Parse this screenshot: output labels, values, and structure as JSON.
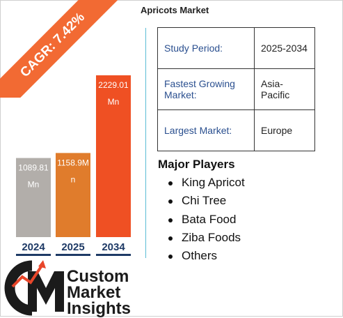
{
  "title": "Apricots Market",
  "cagr": "CAGR: 7.42%",
  "colors": {
    "accent": "#f26a33",
    "bar_2024": "#b2aeaa",
    "bar_2025": "#e07c2c",
    "bar_2034": "#ef5023",
    "year_text": "#1e3a66",
    "divider": "#5bbcd6"
  },
  "chart_data": {
    "type": "bar",
    "categories": [
      "2024",
      "2025",
      "2034"
    ],
    "values": [
      1089.81,
      1158.9,
      2229.01
    ],
    "value_labels": [
      [
        "1089.81",
        "Mn"
      ],
      [
        "1158.9M",
        "n"
      ],
      [
        "2229.01",
        "Mn"
      ]
    ],
    "title": "",
    "xlabel": "",
    "ylabel": "",
    "unit": "Mn"
  },
  "info": [
    {
      "label": "Study Period:",
      "value": "2025-2034"
    },
    {
      "label": "Fastest Growing Market:",
      "value": "Asia-Pacific"
    },
    {
      "label": "Largest Market:",
      "value": "Europe"
    }
  ],
  "players_heading": "Major Players",
  "players": [
    "King Apricot",
    "Chi Tree",
    "Bata Food",
    "Ziba Foods",
    "Others"
  ],
  "logo": {
    "icon": "cmi-logo-icon",
    "line1": "Custom",
    "line2": "Market",
    "line3": "Insights"
  }
}
